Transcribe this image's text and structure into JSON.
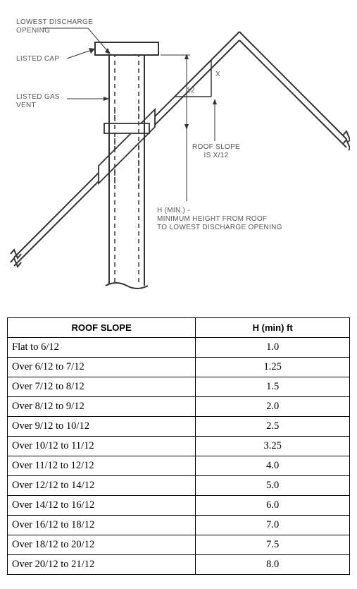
{
  "diagram": {
    "labels": {
      "lowest_discharge_opening": "LOWEST DISCHARGE\nOPENING",
      "listed_cap": "LISTED CAP",
      "listed_gas_vent": "LISTED GAS\nVENT",
      "roof_slope": "ROOF SLOPE\nIS X/12",
      "h_min": "H (MIN.) -\nMINIMUM HEIGHT FROM ROOF\nTO LOWEST DISCHARGE OPENING",
      "x": "X",
      "twelve": "12"
    },
    "colors": {
      "stroke": "#333333",
      "fill_white": "#ffffff",
      "label": "#555555"
    }
  },
  "table": {
    "columns": [
      "ROOF SLOPE",
      "H (min) ft"
    ],
    "rows": [
      [
        "Flat to 6/12",
        "1.0"
      ],
      [
        "Over 6/12 to 7/12",
        "1.25"
      ],
      [
        "Over 7/12 to 8/12",
        "1.5"
      ],
      [
        "Over 8/12 to 9/12",
        "2.0"
      ],
      [
        "Over 9/12 to 10/12",
        "2.5"
      ],
      [
        "Over 10/12 to 11/12",
        "3.25"
      ],
      [
        "Over 11/12 to 12/12",
        "4.0"
      ],
      [
        "Over 12/12 to 14/12",
        "5.0"
      ],
      [
        "Over 14/12 to 16/12",
        "6.0"
      ],
      [
        "Over 16/12 to 18/12",
        "7.0"
      ],
      [
        "Over 18/12 to 20/12",
        "7.5"
      ],
      [
        "Over 20/12 to 21/12",
        "8.0"
      ]
    ]
  }
}
